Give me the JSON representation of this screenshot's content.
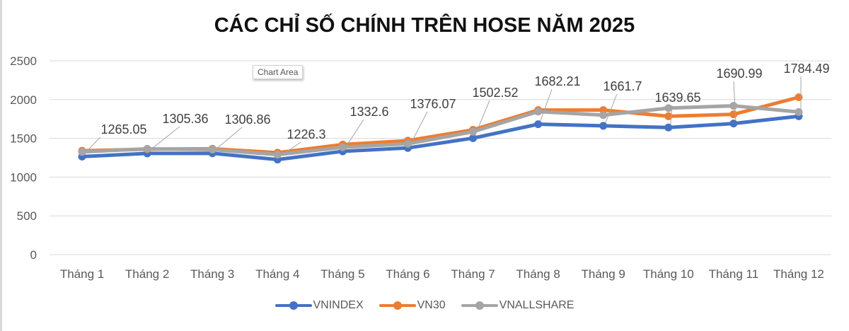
{
  "title": "CÁC CHỈ SỐ CHÍNH TRÊN HOSE NĂM 2025",
  "tooltip": "Chart Area",
  "legend": [
    {
      "name": "VNINDEX",
      "color": "#4472c4"
    },
    {
      "name": "VN30",
      "color": "#ed7d31"
    },
    {
      "name": "VNALLSHARE",
      "color": "#a5a5a5"
    }
  ],
  "chart_data": {
    "type": "line",
    "title": "CÁC CHỈ SỐ CHÍNH TRÊN HOSE NĂM 2025",
    "xlabel": "",
    "ylabel": "",
    "ylim": [
      0,
      2500
    ],
    "yticks": [
      0,
      500,
      1000,
      1500,
      2000,
      2500
    ],
    "grid": true,
    "legend_position": "bottom",
    "categories": [
      "Tháng 1",
      "Tháng 2",
      "Tháng 3",
      "Tháng 4",
      "Tháng 5",
      "Tháng 6",
      "Tháng 7",
      "Tháng 8",
      "Tháng 9",
      "Tháng 10",
      "Tháng 11",
      "Tháng 12"
    ],
    "series": [
      {
        "name": "VNINDEX",
        "color": "#4472c4",
        "values": [
          1265.05,
          1305.36,
          1306.86,
          1226.3,
          1332.6,
          1376.07,
          1502.52,
          1682.21,
          1661.7,
          1639.65,
          1690.99,
          1784.49
        ],
        "data_labels": [
          "1265.05",
          "1305.36",
          "1306.86",
          "1226.3",
          "1332.6",
          "1376.07",
          "1502.52",
          "1682.21",
          "1661.7",
          "1639.65",
          "1690.99",
          "1784.49"
        ]
      },
      {
        "name": "VN30",
        "color": "#ed7d31",
        "values": [
          1340,
          1360,
          1365,
          1315,
          1420,
          1470,
          1610,
          1865,
          1865,
          1785,
          1810,
          2030
        ]
      },
      {
        "name": "VNALLSHARE",
        "color": "#a5a5a5",
        "values": [
          1325,
          1365,
          1355,
          1290,
          1385,
          1430,
          1585,
          1845,
          1800,
          1890,
          1920,
          1840
        ]
      }
    ]
  }
}
